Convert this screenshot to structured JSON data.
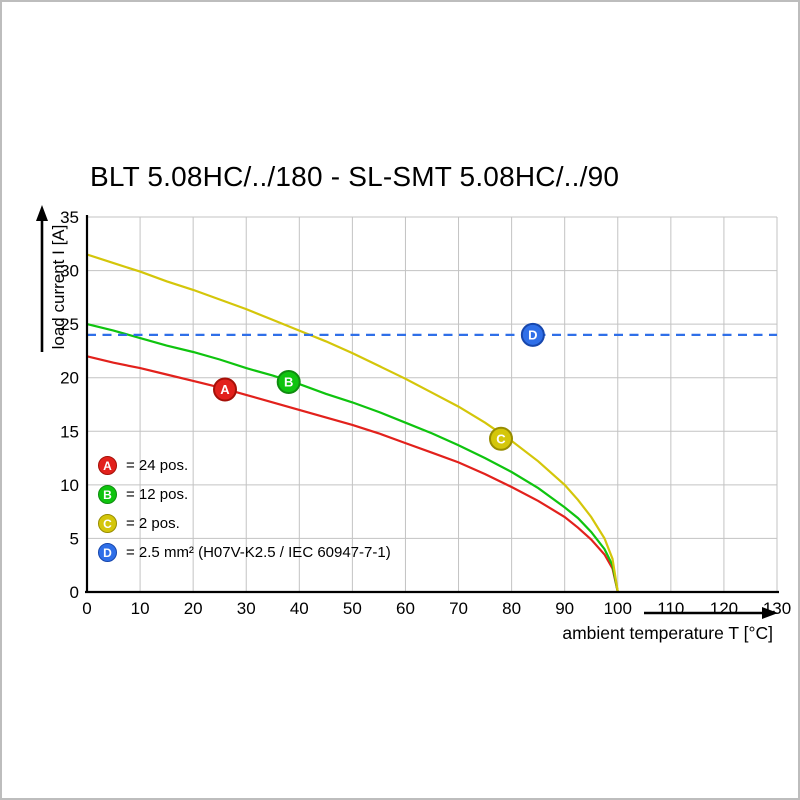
{
  "page": {
    "background": "#ffffff",
    "border_color": "#bdbdbd"
  },
  "chart_data": {
    "type": "line",
    "title": "BLT 5.08HC/../180 - SL-SMT 5.08HC/../90",
    "xlabel": "ambient temperature T [°C]",
    "ylabel": "load current I [A]",
    "xlim": [
      0,
      130
    ],
    "ylim": [
      0,
      35
    ],
    "x_ticks": [
      0,
      10,
      20,
      30,
      40,
      50,
      60,
      70,
      80,
      90,
      100,
      110,
      120,
      130
    ],
    "y_ticks": [
      0,
      5,
      10,
      15,
      20,
      25,
      30,
      35
    ],
    "grid": true,
    "grid_color": "#c3c3c3",
    "axis_color": "#000000",
    "series": [
      {
        "id": "A",
        "name": "24 pos.",
        "color": "#e2211c",
        "ring": "#a51008",
        "style": "solid",
        "x": [
          0,
          5,
          10,
          15,
          20,
          25,
          30,
          35,
          40,
          45,
          50,
          55,
          60,
          65,
          70,
          75,
          80,
          85,
          90,
          92.5,
          95,
          97.5,
          99,
          100
        ],
        "y": [
          22,
          21.4,
          20.9,
          20.3,
          19.7,
          19.1,
          18.4,
          17.7,
          17,
          16.3,
          15.6,
          14.8,
          13.9,
          13,
          12.1,
          11,
          9.8,
          8.5,
          7,
          6,
          4.9,
          3.5,
          2.2,
          0
        ],
        "marker": {
          "x": 26,
          "y": 18.9
        }
      },
      {
        "id": "B",
        "name": "12 pos.",
        "color": "#0fc40f",
        "ring": "#0f8c0f",
        "style": "solid",
        "x": [
          0,
          5,
          10,
          15,
          20,
          25,
          30,
          35,
          40,
          45,
          50,
          55,
          60,
          65,
          70,
          75,
          80,
          85,
          90,
          92.5,
          95,
          97.5,
          99,
          100
        ],
        "y": [
          25,
          24.4,
          23.7,
          23,
          22.4,
          21.7,
          20.9,
          20.2,
          19.4,
          18.5,
          17.7,
          16.8,
          15.8,
          14.8,
          13.7,
          12.5,
          11.2,
          9.7,
          7.9,
          6.9,
          5.6,
          4,
          2.5,
          0
        ],
        "marker": {
          "x": 38,
          "y": 19.6
        }
      },
      {
        "id": "C",
        "name": "2 pos.",
        "color": "#d4c60a",
        "ring": "#988d00",
        "style": "solid",
        "x": [
          0,
          5,
          10,
          15,
          20,
          25,
          30,
          35,
          40,
          45,
          50,
          55,
          60,
          65,
          70,
          75,
          80,
          85,
          90,
          92.5,
          95,
          97.5,
          99,
          100
        ],
        "y": [
          31.5,
          30.7,
          29.9,
          29,
          28.2,
          27.3,
          26.4,
          25.4,
          24.4,
          23.4,
          22.3,
          21.1,
          19.9,
          18.6,
          17.3,
          15.8,
          14.1,
          12.2,
          10,
          8.6,
          7,
          5,
          3.1,
          0
        ],
        "marker": {
          "x": 78,
          "y": 14.3
        }
      },
      {
        "id": "D",
        "name": "2.5 mm² (H07V-K2.5 / IEC 60947-7-1)",
        "color": "#2f6fe8",
        "ring": "#1747ad",
        "style": "dashed",
        "x": [
          0,
          130
        ],
        "y": [
          24,
          24
        ],
        "marker": {
          "x": 84,
          "y": 24
        }
      }
    ],
    "legend": {
      "position": "bottom-left-inside-plot",
      "items": [
        {
          "letter": "A",
          "text": "= 24 pos."
        },
        {
          "letter": "B",
          "text": "= 12 pos."
        },
        {
          "letter": "C",
          "text": "= 2 pos."
        },
        {
          "letter": "D",
          "text": "= 2.5 mm² (H07V-K2.5 / IEC 60947-7-1)"
        }
      ]
    }
  }
}
